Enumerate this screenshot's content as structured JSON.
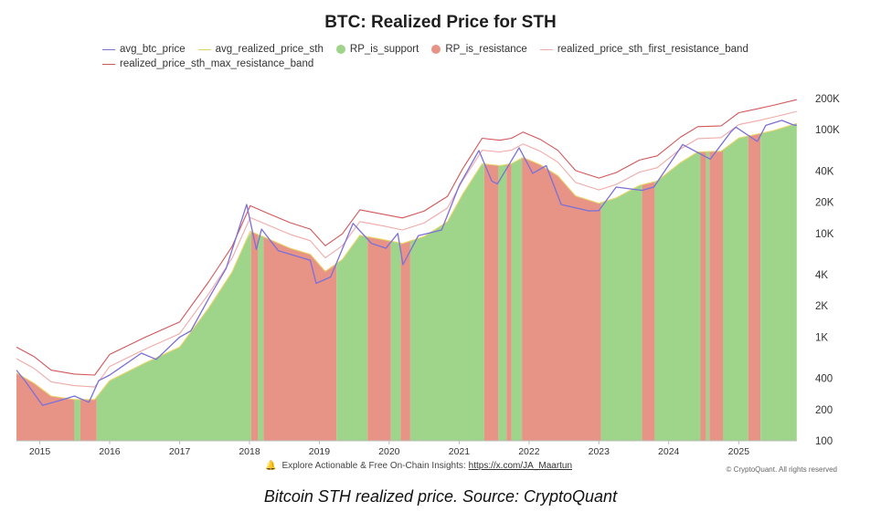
{
  "chart_data": {
    "type": "area",
    "title": "BTC: Realized Price for STH",
    "scale": "log",
    "ylim": [
      100,
      260000
    ],
    "y_ticks": [
      {
        "value": 200000,
        "label": "200K"
      },
      {
        "value": 100000,
        "label": "100K"
      },
      {
        "value": 40000,
        "label": "40K"
      },
      {
        "value": 20000,
        "label": "20K"
      },
      {
        "value": 10000,
        "label": "10K"
      },
      {
        "value": 4000,
        "label": "4K"
      },
      {
        "value": 2000,
        "label": "2K"
      },
      {
        "value": 1000,
        "label": "1K"
      },
      {
        "value": 400,
        "label": "400"
      },
      {
        "value": 200,
        "label": "200"
      },
      {
        "value": 100,
        "label": "100"
      }
    ],
    "x_ticks": [
      "2015",
      "2016",
      "2017",
      "2018",
      "2019",
      "2020",
      "2021",
      "2022",
      "2023",
      "2024",
      "2025"
    ],
    "xlim": [
      "2014-09-01",
      "2025-11-01"
    ],
    "legend_position": "top",
    "legend": [
      {
        "name": "avg_btc_price",
        "kind": "line",
        "color": "#7b6fd8"
      },
      {
        "name": "avg_realized_price_sth",
        "kind": "line",
        "color": "#e8d56a"
      },
      {
        "name": "RP_is_support",
        "kind": "dot",
        "color": "#9ed58a"
      },
      {
        "name": "RP_is_resistance",
        "kind": "dot",
        "color": "#e79487"
      },
      {
        "name": "realized_price_sth_first_resistance_band",
        "kind": "line",
        "color": "#f0aaa8"
      },
      {
        "name": "realized_price_sth_max_resistance_band",
        "kind": "line",
        "color": "#d2575a"
      }
    ],
    "series": [
      {
        "name": "avg_btc_price",
        "color": "#7b6fd8",
        "points": [
          [
            "2014-09-01",
            480
          ],
          [
            "2014-10-15",
            380
          ],
          [
            "2015-01-15",
            220
          ],
          [
            "2015-04-01",
            240
          ],
          [
            "2015-07-01",
            270
          ],
          [
            "2015-09-15",
            235
          ],
          [
            "2015-11-05",
            380
          ],
          [
            "2016-01-01",
            430
          ],
          [
            "2016-06-15",
            700
          ],
          [
            "2016-09-01",
            610
          ],
          [
            "2017-01-01",
            1000
          ],
          [
            "2017-03-01",
            1150
          ],
          [
            "2017-06-15",
            2600
          ],
          [
            "2017-09-01",
            4600
          ],
          [
            "2017-12-17",
            19000
          ],
          [
            "2018-02-06",
            7000
          ],
          [
            "2018-03-05",
            11000
          ],
          [
            "2018-06-01",
            6800
          ],
          [
            "2018-11-15",
            5500
          ],
          [
            "2018-12-15",
            3300
          ],
          [
            "2019-03-01",
            3800
          ],
          [
            "2019-06-26",
            12500
          ],
          [
            "2019-10-01",
            8000
          ],
          [
            "2019-12-15",
            7200
          ],
          [
            "2020-02-15",
            10000
          ],
          [
            "2020-03-13",
            5000
          ],
          [
            "2020-06-01",
            9500
          ],
          [
            "2020-10-01",
            10800
          ],
          [
            "2021-01-01",
            29000
          ],
          [
            "2021-04-14",
            63000
          ],
          [
            "2021-06-20",
            32000
          ],
          [
            "2021-07-20",
            30000
          ],
          [
            "2021-11-10",
            67000
          ],
          [
            "2022-01-20",
            38000
          ],
          [
            "2022-04-01",
            45000
          ],
          [
            "2022-06-18",
            19000
          ],
          [
            "2022-11-10",
            16500
          ],
          [
            "2023-01-01",
            16600
          ],
          [
            "2023-04-01",
            28000
          ],
          [
            "2023-08-15",
            26000
          ],
          [
            "2023-10-15",
            28000
          ],
          [
            "2024-03-14",
            72000
          ],
          [
            "2024-08-05",
            52000
          ],
          [
            "2024-11-20",
            95000
          ],
          [
            "2024-12-17",
            106000
          ],
          [
            "2025-04-08",
            77000
          ],
          [
            "2025-05-22",
            110000
          ],
          [
            "2025-08-14",
            123000
          ],
          [
            "2025-10-10",
            112000
          ],
          [
            "2025-10-31",
            110000
          ]
        ]
      },
      {
        "name": "avg_realized_price_sth",
        "color": "#e8d56a",
        "points": [
          [
            "2014-09-01",
            450
          ],
          [
            "2014-12-01",
            360
          ],
          [
            "2015-03-01",
            270
          ],
          [
            "2015-07-01",
            250
          ],
          [
            "2015-10-15",
            250
          ],
          [
            "2016-01-01",
            380
          ],
          [
            "2016-07-01",
            560
          ],
          [
            "2017-01-01",
            800
          ],
          [
            "2017-06-01",
            1900
          ],
          [
            "2017-10-01",
            4200
          ],
          [
            "2018-01-05",
            10500
          ],
          [
            "2018-04-01",
            9000
          ],
          [
            "2018-08-01",
            7200
          ],
          [
            "2018-11-15",
            6300
          ],
          [
            "2019-02-01",
            4300
          ],
          [
            "2019-05-01",
            5600
          ],
          [
            "2019-08-01",
            9600
          ],
          [
            "2019-12-01",
            8700
          ],
          [
            "2020-03-10",
            8000
          ],
          [
            "2020-07-01",
            9300
          ],
          [
            "2020-11-01",
            13000
          ],
          [
            "2021-01-20",
            24000
          ],
          [
            "2021-05-01",
            47000
          ],
          [
            "2021-08-01",
            45000
          ],
          [
            "2021-10-01",
            47000
          ],
          [
            "2021-12-01",
            54000
          ],
          [
            "2022-03-01",
            46000
          ],
          [
            "2022-06-01",
            36000
          ],
          [
            "2022-09-01",
            23000
          ],
          [
            "2023-01-01",
            19500
          ],
          [
            "2023-04-01",
            22000
          ],
          [
            "2023-08-01",
            29000
          ],
          [
            "2023-11-01",
            32000
          ],
          [
            "2024-03-01",
            48000
          ],
          [
            "2024-06-01",
            61000
          ],
          [
            "2024-10-01",
            62000
          ],
          [
            "2025-01-01",
            83000
          ],
          [
            "2025-04-01",
            90000
          ],
          [
            "2025-07-01",
            98000
          ],
          [
            "2025-10-31",
            115000
          ]
        ]
      },
      {
        "name": "realized_price_sth_first_resistance_band",
        "color": "#f0aaa8",
        "points": [
          [
            "2014-09-01",
            620
          ],
          [
            "2014-12-01",
            500
          ],
          [
            "2015-03-01",
            370
          ],
          [
            "2015-07-01",
            340
          ],
          [
            "2015-10-15",
            330
          ],
          [
            "2016-01-01",
            520
          ],
          [
            "2016-07-01",
            760
          ],
          [
            "2017-01-01",
            1080
          ],
          [
            "2017-06-01",
            2600
          ],
          [
            "2017-10-01",
            5700
          ],
          [
            "2018-01-05",
            14200
          ],
          [
            "2018-04-01",
            12200
          ],
          [
            "2018-08-01",
            9800
          ],
          [
            "2018-11-15",
            8500
          ],
          [
            "2019-02-01",
            5800
          ],
          [
            "2019-05-01",
            7600
          ],
          [
            "2019-08-01",
            13000
          ],
          [
            "2019-12-01",
            11800
          ],
          [
            "2020-03-10",
            10800
          ],
          [
            "2020-07-01",
            12600
          ],
          [
            "2020-11-01",
            17600
          ],
          [
            "2021-01-20",
            32500
          ],
          [
            "2021-05-01",
            63500
          ],
          [
            "2021-08-01",
            61000
          ],
          [
            "2021-10-01",
            63500
          ],
          [
            "2021-12-01",
            73000
          ],
          [
            "2022-03-01",
            62000
          ],
          [
            "2022-06-01",
            48600
          ],
          [
            "2022-09-01",
            31000
          ],
          [
            "2023-01-01",
            26300
          ],
          [
            "2023-04-01",
            29700
          ],
          [
            "2023-08-01",
            39000
          ],
          [
            "2023-11-01",
            43000
          ],
          [
            "2024-03-01",
            65000
          ],
          [
            "2024-06-01",
            82000
          ],
          [
            "2024-10-01",
            84000
          ],
          [
            "2025-01-01",
            112000
          ],
          [
            "2025-04-01",
            121000
          ],
          [
            "2025-07-01",
            132000
          ],
          [
            "2025-10-31",
            150000
          ]
        ]
      },
      {
        "name": "realized_price_sth_max_resistance_band",
        "color": "#d2575a",
        "points": [
          [
            "2014-09-01",
            800
          ],
          [
            "2014-12-01",
            650
          ],
          [
            "2015-03-01",
            480
          ],
          [
            "2015-07-01",
            440
          ],
          [
            "2015-10-15",
            430
          ],
          [
            "2016-01-01",
            680
          ],
          [
            "2016-07-01",
            990
          ],
          [
            "2017-01-01",
            1400
          ],
          [
            "2017-06-01",
            3400
          ],
          [
            "2017-10-01",
            7400
          ],
          [
            "2018-01-05",
            18500
          ],
          [
            "2018-04-01",
            15800
          ],
          [
            "2018-08-01",
            12700
          ],
          [
            "2018-11-15",
            11000
          ],
          [
            "2019-02-01",
            7600
          ],
          [
            "2019-05-01",
            9900
          ],
          [
            "2019-08-01",
            16900
          ],
          [
            "2019-12-01",
            15300
          ],
          [
            "2020-03-10",
            14100
          ],
          [
            "2020-07-01",
            16400
          ],
          [
            "2020-11-01",
            22800
          ],
          [
            "2021-01-20",
            42200
          ],
          [
            "2021-05-01",
            82700
          ],
          [
            "2021-08-01",
            79200
          ],
          [
            "2021-10-01",
            82700
          ],
          [
            "2021-12-01",
            95000
          ],
          [
            "2022-03-01",
            80700
          ],
          [
            "2022-06-01",
            63200
          ],
          [
            "2022-09-01",
            40400
          ],
          [
            "2023-01-01",
            34200
          ],
          [
            "2023-04-01",
            38600
          ],
          [
            "2023-08-01",
            51000
          ],
          [
            "2023-11-01",
            56000
          ],
          [
            "2024-03-01",
            84500
          ],
          [
            "2024-06-01",
            107000
          ],
          [
            "2024-10-01",
            109000
          ],
          [
            "2025-01-01",
            146000
          ],
          [
            "2025-04-01",
            158000
          ],
          [
            "2025-07-01",
            172000
          ],
          [
            "2025-10-31",
            195000
          ]
        ]
      }
    ],
    "regions": [
      {
        "kind": "RP_is_resistance",
        "from": "2014-09-01",
        "to": "2015-07-01"
      },
      {
        "kind": "RP_is_support",
        "from": "2015-07-01",
        "to": "2015-08-01"
      },
      {
        "kind": "RP_is_resistance",
        "from": "2015-08-01",
        "to": "2015-10-25"
      },
      {
        "kind": "RP_is_support",
        "from": "2015-10-25",
        "to": "2018-01-10"
      },
      {
        "kind": "RP_is_resistance",
        "from": "2018-01-10",
        "to": "2018-02-15"
      },
      {
        "kind": "RP_is_support",
        "from": "2018-02-15",
        "to": "2018-03-15"
      },
      {
        "kind": "RP_is_resistance",
        "from": "2018-03-15",
        "to": "2019-04-01"
      },
      {
        "kind": "RP_is_support",
        "from": "2019-04-01",
        "to": "2019-09-10"
      },
      {
        "kind": "RP_is_resistance",
        "from": "2019-09-10",
        "to": "2020-01-10"
      },
      {
        "kind": "RP_is_support",
        "from": "2020-01-10",
        "to": "2020-03-01"
      },
      {
        "kind": "RP_is_resistance",
        "from": "2020-03-01",
        "to": "2020-04-20"
      },
      {
        "kind": "RP_is_support",
        "from": "2020-04-20",
        "to": "2021-05-12"
      },
      {
        "kind": "RP_is_resistance",
        "from": "2021-05-12",
        "to": "2021-07-25"
      },
      {
        "kind": "RP_is_support",
        "from": "2021-07-25",
        "to": "2021-09-05"
      },
      {
        "kind": "RP_is_resistance",
        "from": "2021-09-05",
        "to": "2021-10-01"
      },
      {
        "kind": "RP_is_support",
        "from": "2021-10-01",
        "to": "2021-11-25"
      },
      {
        "kind": "RP_is_resistance",
        "from": "2021-11-25",
        "to": "2023-01-12"
      },
      {
        "kind": "RP_is_support",
        "from": "2023-01-12",
        "to": "2023-08-15"
      },
      {
        "kind": "RP_is_resistance",
        "from": "2023-08-15",
        "to": "2023-10-20"
      },
      {
        "kind": "RP_is_support",
        "from": "2023-10-20",
        "to": "2024-06-15"
      },
      {
        "kind": "RP_is_resistance",
        "from": "2024-06-15",
        "to": "2024-07-15"
      },
      {
        "kind": "RP_is_support",
        "from": "2024-07-15",
        "to": "2024-08-01"
      },
      {
        "kind": "RP_is_resistance",
        "from": "2024-08-01",
        "to": "2024-10-10"
      },
      {
        "kind": "RP_is_support",
        "from": "2024-10-10",
        "to": "2025-02-20"
      },
      {
        "kind": "RP_is_resistance",
        "from": "2025-02-20",
        "to": "2025-04-25"
      },
      {
        "kind": "RP_is_support",
        "from": "2025-04-25",
        "to": "2025-10-31"
      }
    ]
  },
  "footer": {
    "text": "Explore Actionable & Free On-Chain Insights:",
    "link": "https://x.com/JA_Maartun",
    "copyright": "© CryptoQuant. All rights reserved"
  },
  "caption": "Bitcoin STH realized price. Source: CryptoQuant"
}
